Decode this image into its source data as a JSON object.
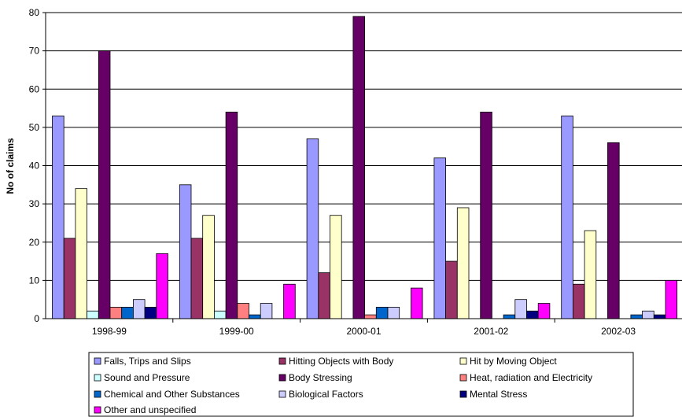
{
  "chart_data": {
    "type": "bar",
    "ylabel": "No of claims",
    "xlabel": "",
    "ylim": [
      0,
      80
    ],
    "yticks": [
      0,
      10,
      20,
      30,
      40,
      50,
      60,
      70,
      80
    ],
    "grid": true,
    "legend_position": "bottom",
    "categories": [
      "1998-99",
      "1999-00",
      "2000-01",
      "2001-02",
      "2002-03"
    ],
    "series": [
      {
        "name": "Falls, Trips and Slips",
        "color": "#9999FF",
        "values": [
          53,
          35,
          47,
          42,
          53
        ]
      },
      {
        "name": "Hitting Objects with  Body",
        "color": "#993366",
        "values": [
          21,
          21,
          12,
          15,
          9
        ]
      },
      {
        "name": "Hit by Moving Object",
        "color": "#FFFFCC",
        "values": [
          34,
          27,
          27,
          29,
          23
        ]
      },
      {
        "name": "Sound and Pressure",
        "color": "#CCFFFF",
        "values": [
          2,
          2,
          0,
          0,
          0
        ]
      },
      {
        "name": "Body Stressing",
        "color": "#660066",
        "values": [
          70,
          54,
          79,
          54,
          46
        ]
      },
      {
        "name": "Heat, radiation and Electricity",
        "color": "#FF8080",
        "values": [
          3,
          4,
          1,
          0,
          0
        ]
      },
      {
        "name": "Chemical and Other Substances",
        "color": "#0066CC",
        "values": [
          3,
          1,
          3,
          1,
          1
        ]
      },
      {
        "name": "Biological Factors",
        "color": "#CCCCFF",
        "values": [
          5,
          4,
          3,
          5,
          2
        ]
      },
      {
        "name": "Mental Stress",
        "color": "#000080",
        "values": [
          3,
          0,
          0,
          2,
          1
        ]
      },
      {
        "name": "Other and unspecified",
        "color": "#FF00FF",
        "values": [
          17,
          9,
          8,
          4,
          10
        ]
      }
    ]
  }
}
